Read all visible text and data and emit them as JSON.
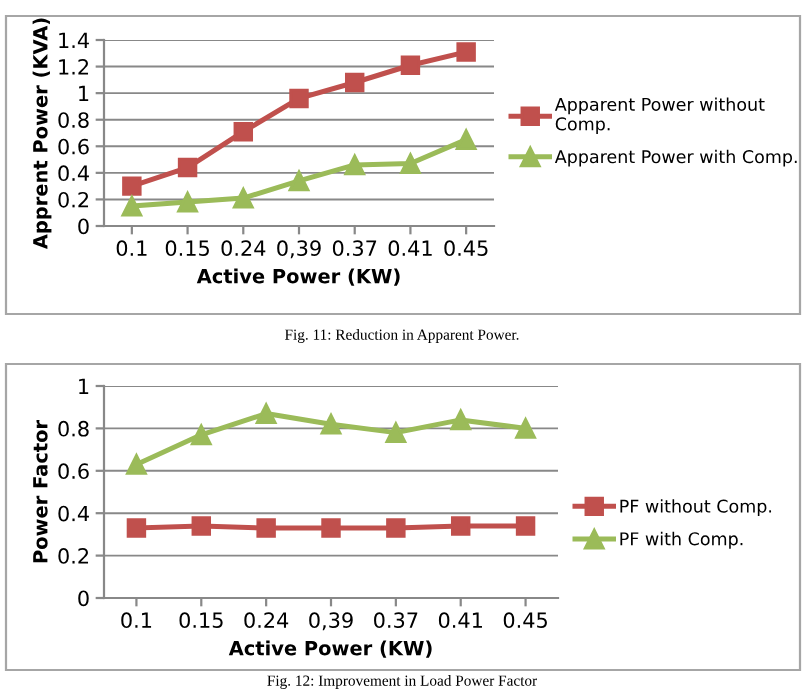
{
  "chart_data": [
    {
      "type": "line",
      "xlabel": "Active Power (KW)",
      "ylabel": "Apprent Power (KVA)",
      "categories": [
        "0.1",
        "0.15",
        "0.24",
        "0,39",
        "0.37",
        "0.41",
        "0.45"
      ],
      "series": [
        {
          "name": "Apparent Power without\nComp.",
          "color": "#c0504d",
          "marker": "square",
          "values": [
            0.3,
            0.44,
            0.71,
            0.96,
            1.08,
            1.21,
            1.31
          ]
        },
        {
          "name": "Apparent Power with Comp.",
          "color": "#9bbb59",
          "marker": "triangle",
          "values": [
            0.15,
            0.18,
            0.21,
            0.34,
            0.46,
            0.47,
            0.65
          ]
        }
      ],
      "ylim": [
        0,
        1.4
      ],
      "yticks": [
        0,
        0.2,
        0.4,
        0.6,
        0.8,
        1,
        1.2,
        1.4
      ],
      "grid": "y",
      "legend": "right",
      "line_style": "solid",
      "annotations": [
        "Fig. 11: Reduction in Apparent Power."
      ]
    },
    {
      "type": "line",
      "xlabel": "Active Power (KW)",
      "ylabel": "Power Factor",
      "categories": [
        "0.1",
        "0.15",
        "0.24",
        "0,39",
        "0.37",
        "0.41",
        "0.45"
      ],
      "series": [
        {
          "name": "PF without Comp.",
          "color": "#c0504d",
          "marker": "square",
          "values": [
            0.33,
            0.34,
            0.33,
            0.33,
            0.33,
            0.34,
            0.34
          ]
        },
        {
          "name": "PF with Comp.",
          "color": "#9bbb59",
          "marker": "triangle",
          "values": [
            0.63,
            0.77,
            0.87,
            0.82,
            0.78,
            0.84,
            0.8
          ]
        }
      ],
      "ylim": [
        0,
        1
      ],
      "yticks": [
        0,
        0.2,
        0.4,
        0.6,
        0.8,
        1
      ],
      "grid": "y",
      "legend": "right",
      "line_style": "solid",
      "annotations": [
        "Fig. 12: Improvement in Load Power Factor"
      ]
    }
  ]
}
